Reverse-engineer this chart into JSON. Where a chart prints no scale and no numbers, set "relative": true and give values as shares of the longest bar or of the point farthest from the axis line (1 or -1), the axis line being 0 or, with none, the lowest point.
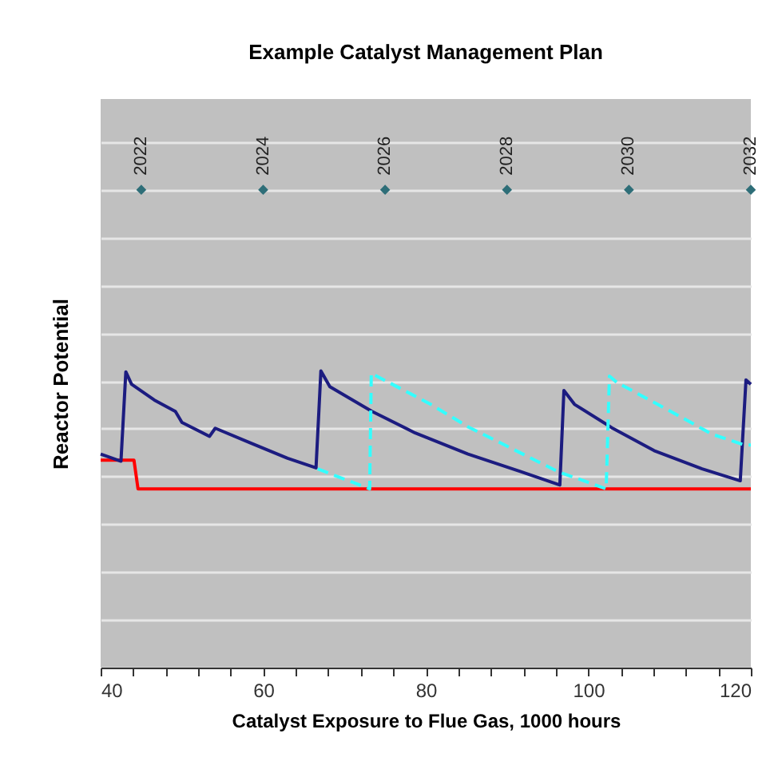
{
  "chart_data": {
    "type": "line",
    "title": "Example Catalyst Management Plan",
    "xlabel": "Catalyst Exposure to Flue Gas, 1000 hours",
    "ylabel": "Reactor Potential",
    "relative": true,
    "grid": "y",
    "xlim": [
      40,
      120
    ],
    "xticks": [
      40,
      {
        "value": 44,
        "label": null
      },
      {
        "value": 48,
        "label": null
      },
      {
        "value": 52,
        "label": null
      },
      {
        "value": 56,
        "label": null
      },
      60,
      {
        "value": 64,
        "label": null
      },
      {
        "value": 68,
        "label": null
      },
      {
        "value": 72,
        "label": null
      },
      {
        "value": 76,
        "label": null
      },
      80,
      {
        "value": 84,
        "label": null
      },
      {
        "value": 88,
        "label": null
      },
      {
        "value": 92,
        "label": null
      },
      {
        "value": 96,
        "label": null
      },
      100,
      {
        "value": 104,
        "label": null
      },
      {
        "value": 108,
        "label": null
      },
      {
        "value": 112,
        "label": null
      },
      {
        "value": 116,
        "label": null
      },
      120
    ],
    "series": [
      {
        "type": "line",
        "color": "#ff0000",
        "line_style": "solid",
        "x": [
          40,
          44.1,
          44.6,
          120
        ],
        "values": [
          0.434,
          0.434,
          0.374,
          0.374
        ]
      },
      {
        "type": "line",
        "color": "#1c1c80",
        "line_style": "solid",
        "x": [
          40,
          42.5,
          43.1,
          43.8,
          46.6,
          49.2,
          50,
          53.4,
          54.1,
          58.3,
          63,
          66.5,
          67.1,
          68.2,
          73.4,
          78.7,
          85.2,
          91.7,
          96.5,
          97,
          98.3,
          102.9,
          108.1,
          114,
          118.7,
          119.4,
          120
        ],
        "values": [
          0.447,
          0.432,
          0.619,
          0.593,
          0.56,
          0.536,
          0.513,
          0.484,
          0.501,
          0.471,
          0.438,
          0.418,
          0.621,
          0.588,
          0.536,
          0.491,
          0.447,
          0.41,
          0.382,
          0.58,
          0.551,
          0.502,
          0.454,
          0.416,
          0.391,
          0.602,
          0.593
        ]
      },
      {
        "type": "line",
        "color": "#33ffff",
        "line_style": "dashed",
        "x": [
          66.7,
          73.1,
          73.3,
          80.6,
          85.2,
          91.7,
          96.3,
          102.2,
          102.6,
          103.5,
          109.4,
          115.3,
          119.2,
          120
        ],
        "values": [
          0.416,
          0.374,
          0.616,
          0.551,
          0.504,
          0.449,
          0.41,
          0.374,
          0.61,
          0.597,
          0.543,
          0.488,
          0.466,
          0.466
        ]
      },
      {
        "type": "scatter",
        "color": "#2e6e78",
        "marker": "diamond",
        "x": [
          45,
          60,
          75,
          90,
          105,
          120
        ],
        "values": [
          1,
          1,
          1,
          1,
          1,
          1
        ]
      }
    ],
    "annotations": [
      {
        "text": "2022",
        "x": 45,
        "y": 1
      },
      {
        "text": "2024",
        "x": 60,
        "y": 1
      },
      {
        "text": "2026",
        "x": 75,
        "y": 1
      },
      {
        "text": "2028",
        "x": 90,
        "y": 1
      },
      {
        "text": "2030",
        "x": 105,
        "y": 1
      },
      {
        "text": "2032",
        "x": 120,
        "y": 1
      }
    ]
  }
}
